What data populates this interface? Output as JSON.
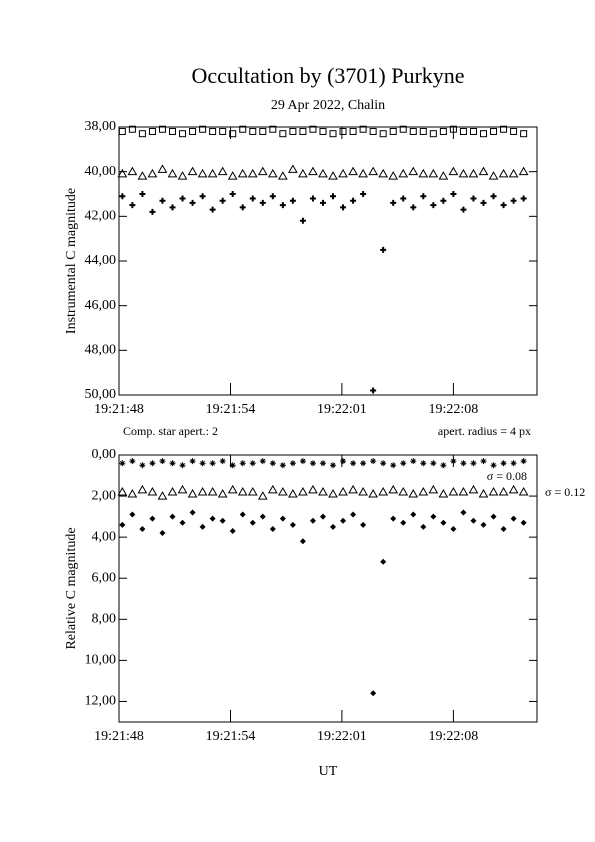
{
  "chart_data": [
    {
      "type": "scatter",
      "title": "Occultation by (3701) Purkyne",
      "subtitle": "29 Apr 2022, Chalin",
      "y_label": "Instrumental C magnitude",
      "x": [
        69708.2,
        69708.8,
        69709.4,
        69710.0,
        69710.6,
        69711.2,
        69711.8,
        69712.4,
        69713.0,
        69713.6,
        69714.2,
        69714.8,
        69715.4,
        69716.0,
        69716.6,
        69717.2,
        69717.8,
        69718.4,
        69719.0,
        69719.6,
        69720.2,
        69720.8,
        69721.4,
        69722.0,
        69722.6,
        69723.2,
        69723.8,
        69724.4,
        69725.0,
        69725.6,
        69726.2,
        69726.8,
        69727.4,
        69728.0,
        69728.6,
        69729.2,
        69729.8,
        69730.4,
        69731.0,
        69731.6,
        69732.2
      ],
      "series": [
        {
          "color": "#000000",
          "marker": "square",
          "values": [
            38.2,
            38.1,
            38.3,
            38.2,
            38.1,
            38.2,
            38.3,
            38.2,
            38.1,
            38.2,
            38.2,
            38.3,
            38.1,
            38.2,
            38.2,
            38.1,
            38.3,
            38.2,
            38.2,
            38.1,
            38.2,
            38.3,
            38.2,
            38.2,
            38.1,
            38.2,
            38.3,
            38.2,
            38.1,
            38.2,
            38.2,
            38.3,
            38.2,
            38.1,
            38.2,
            38.2,
            38.3,
            38.2,
            38.1,
            38.2,
            38.3
          ]
        },
        {
          "color": "#000000",
          "marker": "triangle",
          "values": [
            40.1,
            40.0,
            40.2,
            40.1,
            39.9,
            40.1,
            40.2,
            40.0,
            40.1,
            40.1,
            40.0,
            40.2,
            40.1,
            40.1,
            40.0,
            40.1,
            40.2,
            39.9,
            40.1,
            40.0,
            40.1,
            40.2,
            40.1,
            40.0,
            40.1,
            40.0,
            40.1,
            40.2,
            40.1,
            40.0,
            40.1,
            40.1,
            40.2,
            40.0,
            40.1,
            40.1,
            40.0,
            40.2,
            40.1,
            40.1,
            40.0
          ]
        },
        {
          "color": "#000000",
          "marker": "plus",
          "values": [
            41.1,
            41.5,
            41.0,
            41.8,
            41.3,
            41.6,
            41.2,
            41.4,
            41.1,
            41.7,
            41.3,
            41.0,
            41.6,
            41.2,
            41.4,
            41.1,
            41.5,
            41.3,
            42.2,
            41.2,
            41.4,
            41.1,
            41.6,
            41.3,
            41.0,
            49.8,
            43.5,
            41.4,
            41.2,
            41.6,
            41.1,
            41.5,
            41.3,
            41.0,
            41.7,
            41.2,
            41.4,
            41.1,
            41.5,
            41.3,
            41.2
          ]
        }
      ],
      "xlim": [
        69708,
        69733
      ],
      "xticks": [
        {
          "value": 69708,
          "label": "19:21:48"
        },
        {
          "value": 69714.67,
          "label": "19:21:54"
        },
        {
          "value": 69721.33,
          "label": "19:22:01"
        },
        {
          "value": 69728,
          "label": "19:22:08"
        }
      ],
      "ylim": [
        38,
        50
      ],
      "y_inverted": true,
      "yticks": [
        {
          "value": 38,
          "label": "38,00"
        },
        {
          "value": 40,
          "label": "40,00"
        },
        {
          "value": 42,
          "label": "42,00"
        },
        {
          "value": 44,
          "label": "44,00"
        },
        {
          "value": 46,
          "label": "46,00"
        },
        {
          "value": 48,
          "label": "48,00"
        },
        {
          "value": 50,
          "label": "50,00"
        }
      ]
    },
    {
      "type": "scatter",
      "y_label": "Relative C magnitude",
      "x_label": "UT",
      "annotations": [
        "Comp. star apert.: 2",
        "apert. radius = 4 px",
        "σ = 0.08",
        "σ = 0.12"
      ],
      "x": [
        69708.2,
        69708.8,
        69709.4,
        69710.0,
        69710.6,
        69711.2,
        69711.8,
        69712.4,
        69713.0,
        69713.6,
        69714.2,
        69714.8,
        69715.4,
        69716.0,
        69716.6,
        69717.2,
        69717.8,
        69718.4,
        69719.0,
        69719.6,
        69720.2,
        69720.8,
        69721.4,
        69722.0,
        69722.6,
        69723.2,
        69723.8,
        69724.4,
        69725.0,
        69725.6,
        69726.2,
        69726.8,
        69727.4,
        69728.0,
        69728.6,
        69729.2,
        69729.8,
        69730.4,
        69731.0,
        69731.6,
        69732.2
      ],
      "series": [
        {
          "color": "#000000",
          "marker": "star",
          "values": [
            0.4,
            0.3,
            0.5,
            0.4,
            0.3,
            0.4,
            0.5,
            0.3,
            0.4,
            0.4,
            0.3,
            0.5,
            0.4,
            0.4,
            0.3,
            0.4,
            0.5,
            0.4,
            0.3,
            0.4,
            0.4,
            0.5,
            0.3,
            0.4,
            0.4,
            0.3,
            0.4,
            0.5,
            0.4,
            0.3,
            0.4,
            0.4,
            0.5,
            0.3,
            0.4,
            0.4,
            0.3,
            0.5,
            0.4,
            0.4,
            0.3
          ]
        },
        {
          "color": "#000000",
          "marker": "triangle",
          "values": [
            1.8,
            1.9,
            1.7,
            1.8,
            2.0,
            1.8,
            1.7,
            1.9,
            1.8,
            1.8,
            1.9,
            1.7,
            1.8,
            1.8,
            2.0,
            1.7,
            1.8,
            1.9,
            1.8,
            1.7,
            1.8,
            1.9,
            1.8,
            1.7,
            1.8,
            1.9,
            1.8,
            1.7,
            1.8,
            1.9,
            1.8,
            1.7,
            1.9,
            1.8,
            1.8,
            1.7,
            1.9,
            1.8,
            1.8,
            1.7,
            1.8
          ]
        },
        {
          "color": "#000000",
          "marker": "diamond",
          "values": [
            3.4,
            2.9,
            3.6,
            3.1,
            3.8,
            3.0,
            3.3,
            2.8,
            3.5,
            3.1,
            3.2,
            3.7,
            2.9,
            3.3,
            3.0,
            3.6,
            3.1,
            3.4,
            4.2,
            3.2,
            3.0,
            3.5,
            3.2,
            2.9,
            3.4,
            11.6,
            5.2,
            3.1,
            3.3,
            2.9,
            3.5,
            3.0,
            3.3,
            3.6,
            2.8,
            3.2,
            3.4,
            3.0,
            3.6,
            3.1,
            3.3
          ]
        }
      ],
      "xlim": [
        69708,
        69733
      ],
      "xticks": [
        {
          "value": 69708,
          "label": "19:21:48"
        },
        {
          "value": 69714.67,
          "label": "19:21:54"
        },
        {
          "value": 69721.33,
          "label": "19:22:01"
        },
        {
          "value": 69728,
          "label": "19:22:08"
        }
      ],
      "ylim": [
        0,
        13
      ],
      "y_inverted": true,
      "yticks": [
        {
          "value": 0,
          "label": "0,00"
        },
        {
          "value": 2,
          "label": "2,00"
        },
        {
          "value": 4,
          "label": "4,00"
        },
        {
          "value": 6,
          "label": "6,00"
        },
        {
          "value": 8,
          "label": "8,00"
        },
        {
          "value": 10,
          "label": "10,00"
        },
        {
          "value": 12,
          "label": "12,00"
        }
      ]
    }
  ]
}
